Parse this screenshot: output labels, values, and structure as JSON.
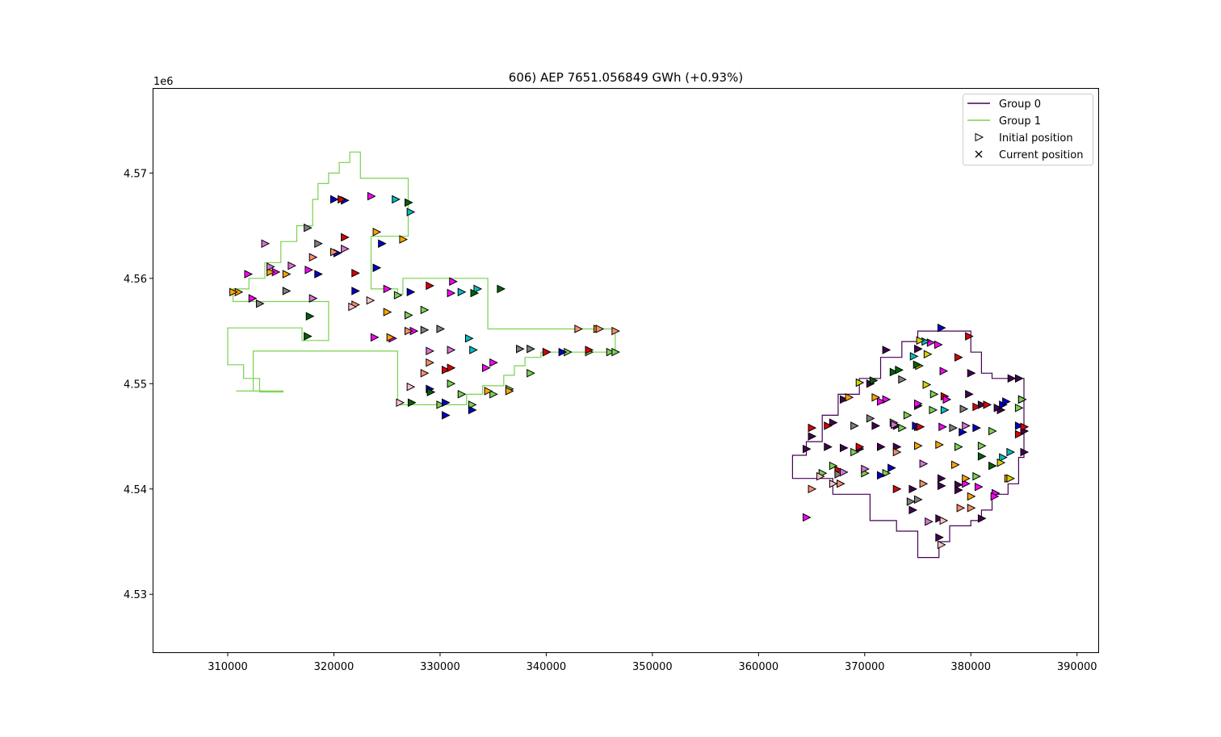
{
  "chart_data": {
    "type": "scatter",
    "title": "606) AEP 7651.056849 GWh (+0.93%)",
    "xlabel": "",
    "ylabel": "",
    "y_offset_label": "1e6",
    "xlim": [
      303000,
      392000
    ],
    "ylim": [
      4524500,
      4578000
    ],
    "xticks": [
      310000,
      320000,
      330000,
      340000,
      350000,
      360000,
      370000,
      380000,
      390000
    ],
    "xtick_labels": [
      "310000",
      "320000",
      "330000",
      "340000",
      "350000",
      "360000",
      "370000",
      "380000",
      "390000"
    ],
    "yticks": [
      4530000,
      4540000,
      4550000,
      4560000,
      4570000
    ],
    "ytick_labels": [
      "4.53",
      "4.54",
      "4.55",
      "4.56",
      "4.57"
    ],
    "grid": false,
    "legend_position": "top-right",
    "legend": [
      {
        "label": "Group 0",
        "kind": "line",
        "color": "#440154"
      },
      {
        "label": "Group 1",
        "kind": "line",
        "color": "#7ad151"
      },
      {
        "label": "Initial position",
        "kind": "triangle",
        "color": "#000000"
      },
      {
        "label": "Current position",
        "kind": "x",
        "color": "#000000"
      }
    ],
    "boundaries": [
      {
        "name": "Group 0",
        "color": "#440154",
        "points": [
          [
            377000,
            4555000
          ],
          [
            380000,
            4555000
          ],
          [
            380000,
            4553000
          ],
          [
            381000,
            4553000
          ],
          [
            381000,
            4551000
          ],
          [
            382000,
            4551000
          ],
          [
            382000,
            4550500
          ],
          [
            385000,
            4550500
          ],
          [
            385000,
            4543000
          ],
          [
            384500,
            4543000
          ],
          [
            384500,
            4540500
          ],
          [
            383500,
            4540500
          ],
          [
            383500,
            4539500
          ],
          [
            382000,
            4539500
          ],
          [
            382000,
            4538000
          ],
          [
            381000,
            4538000
          ],
          [
            381000,
            4537000
          ],
          [
            380000,
            4537000
          ],
          [
            380000,
            4536500
          ],
          [
            378000,
            4536500
          ],
          [
            378000,
            4535000
          ],
          [
            377000,
            4535000
          ],
          [
            377000,
            4533500
          ],
          [
            375000,
            4533500
          ],
          [
            375000,
            4536000
          ],
          [
            373000,
            4536000
          ],
          [
            373000,
            4537000
          ],
          [
            370500,
            4537000
          ],
          [
            370500,
            4539500
          ],
          [
            367000,
            4539500
          ],
          [
            367000,
            4541000
          ],
          [
            363200,
            4541000
          ],
          [
            363200,
            4543200
          ],
          [
            364500,
            4543200
          ],
          [
            364500,
            4544500
          ],
          [
            366000,
            4544500
          ],
          [
            366000,
            4547000
          ],
          [
            367500,
            4547000
          ],
          [
            367500,
            4549000
          ],
          [
            369500,
            4549000
          ],
          [
            369500,
            4550500
          ],
          [
            371500,
            4550500
          ],
          [
            371500,
            4552500
          ],
          [
            373500,
            4552500
          ],
          [
            373500,
            4554000
          ],
          [
            375000,
            4554000
          ],
          [
            375000,
            4555000
          ],
          [
            377000,
            4555000
          ]
        ]
      },
      {
        "name": "Group 1",
        "color": "#7ad151",
        "points": [
          [
            310500,
            4558000
          ],
          [
            310500,
            4559000
          ],
          [
            312000,
            4559000
          ],
          [
            312000,
            4560000
          ],
          [
            313500,
            4560000
          ],
          [
            313500,
            4561500
          ],
          [
            315000,
            4561500
          ],
          [
            315000,
            4563500
          ],
          [
            316500,
            4563500
          ],
          [
            316500,
            4565000
          ],
          [
            318000,
            4565000
          ],
          [
            318000,
            4567500
          ],
          [
            318500,
            4567500
          ],
          [
            318500,
            4569000
          ],
          [
            319500,
            4569000
          ],
          [
            319500,
            4570000
          ],
          [
            320500,
            4570000
          ],
          [
            320500,
            4571000
          ],
          [
            321500,
            4571000
          ],
          [
            321500,
            4572000
          ],
          [
            322500,
            4572000
          ],
          [
            322500,
            4569500
          ],
          [
            327000,
            4569500
          ],
          [
            327000,
            4564000
          ],
          [
            323500,
            4564000
          ],
          [
            323500,
            4559000
          ],
          [
            326000,
            4559000
          ],
          [
            326000,
            4558500
          ],
          [
            326500,
            4558500
          ],
          [
            326500,
            4560000
          ],
          [
            334500,
            4560000
          ],
          [
            334500,
            4555200
          ],
          [
            346500,
            4555200
          ],
          [
            346500,
            4553000
          ],
          [
            339500,
            4553000
          ],
          [
            339500,
            4552500
          ],
          [
            338000,
            4552500
          ],
          [
            338000,
            4551700
          ],
          [
            337000,
            4551700
          ],
          [
            337000,
            4550800
          ],
          [
            336000,
            4550800
          ],
          [
            336000,
            4549800
          ],
          [
            334000,
            4549800
          ],
          [
            334000,
            4549000
          ],
          [
            332500,
            4549000
          ],
          [
            332500,
            4548000
          ],
          [
            326000,
            4548000
          ],
          [
            326000,
            4553100
          ],
          [
            312400,
            4553100
          ],
          [
            312400,
            4549300
          ],
          [
            311000,
            4549300
          ],
          [
            311000,
            4549300
          ],
          [
            310800,
            4549300
          ],
          [
            310800,
            4549300
          ],
          [
            315200,
            4549300
          ],
          [
            315200,
            4549300
          ],
          [
            315200,
            4549200
          ],
          [
            313000,
            4549200
          ],
          [
            313000,
            4550500
          ],
          [
            311500,
            4550500
          ],
          [
            311500,
            4551800
          ],
          [
            310000,
            4551800
          ],
          [
            310000,
            4555300
          ],
          [
            317000,
            4555300
          ],
          [
            317000,
            4554100
          ],
          [
            319500,
            4554100
          ],
          [
            319500,
            4557800
          ],
          [
            310500,
            4557800
          ],
          [
            310500,
            4558000
          ]
        ]
      }
    ],
    "series": [
      {
        "color": "#440154",
        "x": [
          385000,
          385000,
          384800,
          384500,
          383800,
          382800,
          382500,
          381000,
          379800,
          380000,
          375000,
          372000,
          370500,
          368000,
          367000,
          366500,
          364500,
          365000,
          368000,
          369500,
          371500,
          371000,
          373000,
          373000,
          374500,
          374500,
          377000,
          377000,
          377200,
          377200,
          378800,
          378800,
          375000,
          375000,
          381000
        ],
        "y": [
          4543500,
          4545500,
          4548500,
          4550500,
          4550500,
          4547500,
          4547700,
          4548000,
          4549000,
          4551000,
          4553300,
          4553200,
          4550000,
          4548500,
          4546300,
          4544000,
          4543800,
          4545000,
          4543900,
          4543800,
          4544000,
          4546000,
          4546000,
          4544000,
          4540000,
          4538000,
          4537200,
          4535400,
          4540300,
          4541000,
          4540400,
          4539900,
          4545900,
          4547900,
          4537200
        ]
      },
      {
        "color": "#7ad151",
        "x": [
          384800,
          384500,
          382000,
          381000,
          380500,
          378800,
          376500,
          376400,
          374000,
          373500,
          372000,
          370000,
          369000,
          367000,
          366000,
          326000,
          327000,
          328500,
          330000,
          331000,
          332000,
          333000,
          335000,
          336500,
          338500,
          340000,
          342000,
          344000,
          346000,
          346500
        ],
        "y": [
          4548500,
          4547700,
          4545500,
          4544100,
          4541200,
          4544000,
          4549000,
          4547500,
          4547000,
          4545800,
          4541500,
          4541500,
          4543500,
          4542200,
          4541500,
          4558400,
          4556500,
          4557000,
          4548000,
          4550000,
          4549000,
          4548000,
          4549000,
          4549500,
          4551000,
          4553000,
          4553000,
          4553000,
          4553000,
          4553000
        ]
      },
      {
        "color": "#0000cd",
        "x": [
          384500,
          383000,
          383300,
          380500,
          379200,
          377200,
          374800,
          372500,
          371500,
          327200,
          322000,
          320300,
          320000,
          321000,
          324500,
          324000,
          318500,
          330500,
          329000,
          333000,
          330500,
          341500
        ],
        "y": [
          4546000,
          4548000,
          4548300,
          4545800,
          4545400,
          4555300,
          4546000,
          4542000,
          4541300,
          4558700,
          4558800,
          4562400,
          4567500,
          4567400,
          4563300,
          4561000,
          4560400,
          4548200,
          4549500,
          4547500,
          4547000,
          4553000
        ]
      },
      {
        "color": "#dd0000",
        "x": [
          385000,
          384500,
          381500,
          380500,
          379800,
          378800,
          377500,
          375200,
          373000,
          369500,
          366500,
          367500,
          365000,
          320700,
          321000,
          322000,
          329000,
          330500,
          331000,
          340000,
          344000
        ],
        "y": [
          4545900,
          4545200,
          4548000,
          4547800,
          4554500,
          4552500,
          4548800,
          4545900,
          4540000,
          4544000,
          4546000,
          4541800,
          4545800,
          4567500,
          4563900,
          4560500,
          4559300,
          4551300,
          4551500,
          4553000,
          4553200
        ]
      },
      {
        "color": "#ff00ff",
        "x": [
          382300,
          382200,
          380700,
          379500,
          377300,
          377700,
          377400,
          376900,
          376200,
          375000,
          372000,
          371500,
          364500,
          325000,
          323500,
          314500,
          311900,
          312300,
          317600,
          323800,
          331200,
          331000,
          335000,
          334300,
          327500,
          325500
        ],
        "y": [
          4539600,
          4539300,
          4540200,
          4540500,
          4545900,
          4548500,
          4551200,
          4553700,
          4553900,
          4548100,
          4548500,
          4548300,
          4537300,
          4559000,
          4567800,
          4560600,
          4560400,
          4558100,
          4560800,
          4554400,
          4559700,
          4558600,
          4552000,
          4551500,
          4555000,
          4554300
        ]
      },
      {
        "color": "#ffa500",
        "x": [
          383500,
          380000,
          379500,
          378500,
          377000,
          375000,
          371000,
          368500,
          325300,
          325000,
          324000,
          326500,
          314000,
          311000,
          310500,
          336500,
          334500,
          315500,
          344800
        ],
        "y": [
          4541000,
          4539300,
          4541000,
          4542300,
          4544200,
          4544100,
          4548700,
          4548700,
          4554400,
          4556800,
          4564400,
          4563700,
          4560600,
          4558700,
          4558700,
          4549300,
          4549300,
          4560400,
          4555200
        ]
      },
      {
        "color": "#808080",
        "x": [
          374300,
          375000,
          373500,
          369000,
          372700,
          370500,
          367500,
          378300,
          379300,
          330000,
          328500,
          315500,
          318500,
          317500,
          313000,
          338500,
          337500
        ],
        "y": [
          4538800,
          4539000,
          4550400,
          4546000,
          4546300,
          4546700,
          4541400,
          4545800,
          4547600,
          4555200,
          4555100,
          4558800,
          4563300,
          4564800,
          4557600,
          4553300,
          4553300
        ]
      },
      {
        "color": "#ff8c69",
        "x": [
          380000,
          379000,
          375500,
          373000,
          367700,
          365000,
          329000,
          328500,
          327000,
          320000,
          318000,
          322000,
          343000,
          345000,
          346500
        ],
        "y": [
          4538200,
          4538200,
          4540500,
          4543500,
          4540500,
          4540000,
          4552000,
          4551000,
          4555000,
          4562500,
          4562000,
          4557500,
          4555200,
          4555200,
          4555000
        ]
      },
      {
        "color": "#da70d6",
        "x": [
          376000,
          375500,
          379500,
          372800,
          370000,
          368000,
          316000,
          314000,
          321000,
          329000,
          331000,
          318000,
          313500
        ],
        "y": [
          4536900,
          4542400,
          4546000,
          4546100,
          4541900,
          4541600,
          4561200,
          4561100,
          4562800,
          4553100,
          4553200,
          4558100,
          4563300
        ]
      },
      {
        "color": "#ffc0cb",
        "x": [
          377200,
          377400,
          365800,
          367000,
          321700,
          323400,
          326200,
          327200
        ],
        "y": [
          4534700,
          4537000,
          4541200,
          4540500,
          4557300,
          4557900,
          4548200,
          4549700
        ]
      },
      {
        "color": "#00bfbf",
        "x": [
          383700,
          383000,
          377500,
          374600,
          375700,
          332700,
          333100,
          332000,
          333500,
          325800,
          327200
        ],
        "y": [
          4543500,
          4543000,
          4547500,
          4552600,
          4554000,
          4554300,
          4553200,
          4558700,
          4559000,
          4567500,
          4566300
        ]
      },
      {
        "color": "#d4d400",
        "x": [
          383700,
          382800,
          375800,
          375900,
          369500,
          375100,
          375200
        ],
        "y": [
          4541000,
          4542500,
          4549900,
          4552800,
          4550100,
          4551700,
          4554100
        ]
      },
      {
        "color": "#006400",
        "x": [
          382000,
          381000,
          372700,
          373200,
          374900,
          370800,
          329100,
          327300,
          335700,
          333200,
          317700,
          317500,
          327000
        ],
        "y": [
          4542200,
          4543100,
          4551100,
          4551300,
          4551800,
          4550300,
          4549200,
          4548200,
          4559000,
          4558600,
          4556400,
          4554500,
          4567200
        ]
      }
    ]
  }
}
